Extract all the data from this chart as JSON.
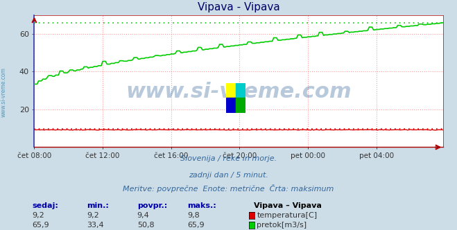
{
  "title": "Vipava - Vipava",
  "bg_color": "#ccdde8",
  "plot_bg_color": "#ffffff",
  "grid_color": "#ff9999",
  "grid_linestyle": "dotted",
  "xlim": [
    0,
    287
  ],
  "ylim": [
    0,
    70
  ],
  "yticks": [
    20,
    40,
    60
  ],
  "xtick_labels": [
    "čet 08:00",
    "čet 12:00",
    "čet 16:00",
    "čet 20:00",
    "pet 00:00",
    "pet 04:00"
  ],
  "xtick_positions": [
    0,
    48,
    96,
    144,
    192,
    240
  ],
  "temp_value": "9,2",
  "temp_min": "9,2",
  "temp_avg": "9,4",
  "temp_max": "9,8",
  "flow_value": "65,9",
  "flow_min": "33,4",
  "flow_avg": "50,8",
  "flow_max": "65,9",
  "flow_max_num": 65.9,
  "temp_max_num": 9.8,
  "temp_color": "#dd0000",
  "flow_color": "#00cc00",
  "spine_color": "#aa0000",
  "watermark_text": "www.si-vreme.com",
  "watermark_color": "#336699",
  "watermark_alpha": 0.35,
  "watermark_fontsize": 22,
  "subtitle1": "Slovenija / reke in morje.",
  "subtitle2": "zadnji dan / 5 minut.",
  "subtitle3": "Meritve: povprečne  Enote: metrične  Črta: maksimum",
  "text_color": "#336699",
  "headers": [
    "sedaj:",
    "min.:",
    "povpr.:",
    "maks.:"
  ],
  "station_header": "Vipava – Vipava",
  "legend_temp": "temperatura[C]",
  "legend_flow": "pretok[m3/s]",
  "ylabel_text": "www.si-vreme.com",
  "ylabel_color": "#4488aa",
  "icon_colors": [
    "#ffff00",
    "#00cccc",
    "#0000cc",
    "#00aa00"
  ],
  "title_color": "#000066"
}
